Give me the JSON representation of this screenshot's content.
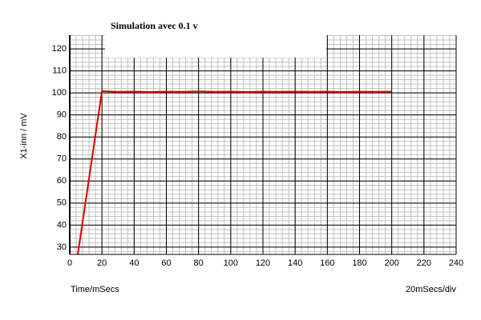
{
  "chart_data": {
    "type": "line",
    "title": "Simulation avec 0.1 v",
    "y_label": "X1-inn / mV",
    "x_label": "Time/mSecs",
    "scale_note": "20mSecs/div",
    "x": [
      5,
      20,
      30,
      40,
      50,
      60,
      70,
      80,
      90,
      100,
      110,
      120,
      130,
      140,
      150,
      160,
      170,
      180,
      190,
      200
    ],
    "series": [
      {
        "name": "X1-inn",
        "color": "#e00000",
        "values": [
          26.7,
          100.8,
          100.5,
          100.6,
          100.4,
          100.6,
          100.5,
          100.7,
          100.5,
          100.6,
          100.4,
          100.6,
          100.5,
          100.6,
          100.5,
          100.6,
          100.4,
          100.6,
          100.5,
          100.6
        ]
      }
    ],
    "xlim": [
      0,
      240
    ],
    "ylim": [
      26.7,
      126.2
    ],
    "xticks": [
      0,
      20,
      40,
      60,
      80,
      100,
      120,
      140,
      160,
      180,
      200,
      220,
      240
    ],
    "yticks": [
      30,
      40,
      50,
      60,
      70,
      80,
      90,
      100,
      110,
      120
    ],
    "grid": true
  }
}
